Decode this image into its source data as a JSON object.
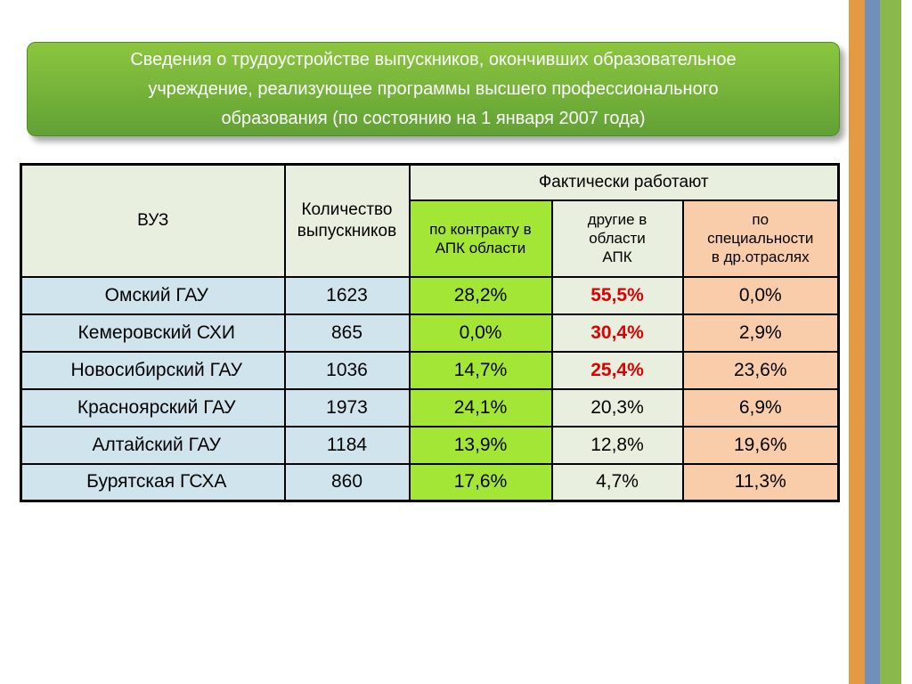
{
  "title": {
    "lines": [
      "Сведения о трудоустройстве выпускников, окончивших образовательное",
      "учреждение, реализующее программы высшего профессионального",
      "образования (по состоянию на 1 января 2007 года)"
    ]
  },
  "table": {
    "headers": {
      "vuz": "ВУЗ",
      "count_lines": [
        "Количество",
        "выпускников"
      ],
      "fact_group": "Фактически работают",
      "contract_lines": [
        "по контракту в",
        "АПК области"
      ],
      "other_lines": [
        "другие в",
        "области",
        "АПК"
      ],
      "spec_lines": [
        "по",
        "специальности",
        "в  др.отраслях"
      ]
    },
    "rows": [
      {
        "name": "Омский ГАУ",
        "count": "1623",
        "contract": "28,2%",
        "other": "55,5%",
        "spec": "0,0%"
      },
      {
        "name": "Кемеровский СХИ",
        "count": "865",
        "contract": "0,0%",
        "other": "30,4%",
        "spec": "2,9%"
      },
      {
        "name": "Новосибирский ГАУ",
        "count": "1036",
        "contract": "14,7%",
        "other": "25,4%",
        "spec": "23,6%"
      },
      {
        "name": "Красноярский ГАУ",
        "count": "1973",
        "contract": "24,1%",
        "other": "20,3%",
        "spec": "6,9%"
      },
      {
        "name": "Алтайский ГАУ",
        "count": "1184",
        "contract": "13,9%",
        "other": "12,8%",
        "spec": "19,6%"
      },
      {
        "name": "Бурятская ГСХА",
        "count": "860",
        "contract": "17,6%",
        "other": "4,7%",
        "spec": "11,3%"
      }
    ]
  },
  "colors": {
    "banner_green_top": "#8cc63f",
    "banner_green_bottom": "#61a135",
    "cell_light": "#e9efdf",
    "cell_green": "#a3e635",
    "cell_peach": "#f9cda9",
    "cell_blue": "#cfe4ec",
    "highlight_red": "#dd0000",
    "stripe_orange": "#e39a43",
    "stripe_blue": "#7090b7",
    "stripe_green": "#8ab84d"
  }
}
